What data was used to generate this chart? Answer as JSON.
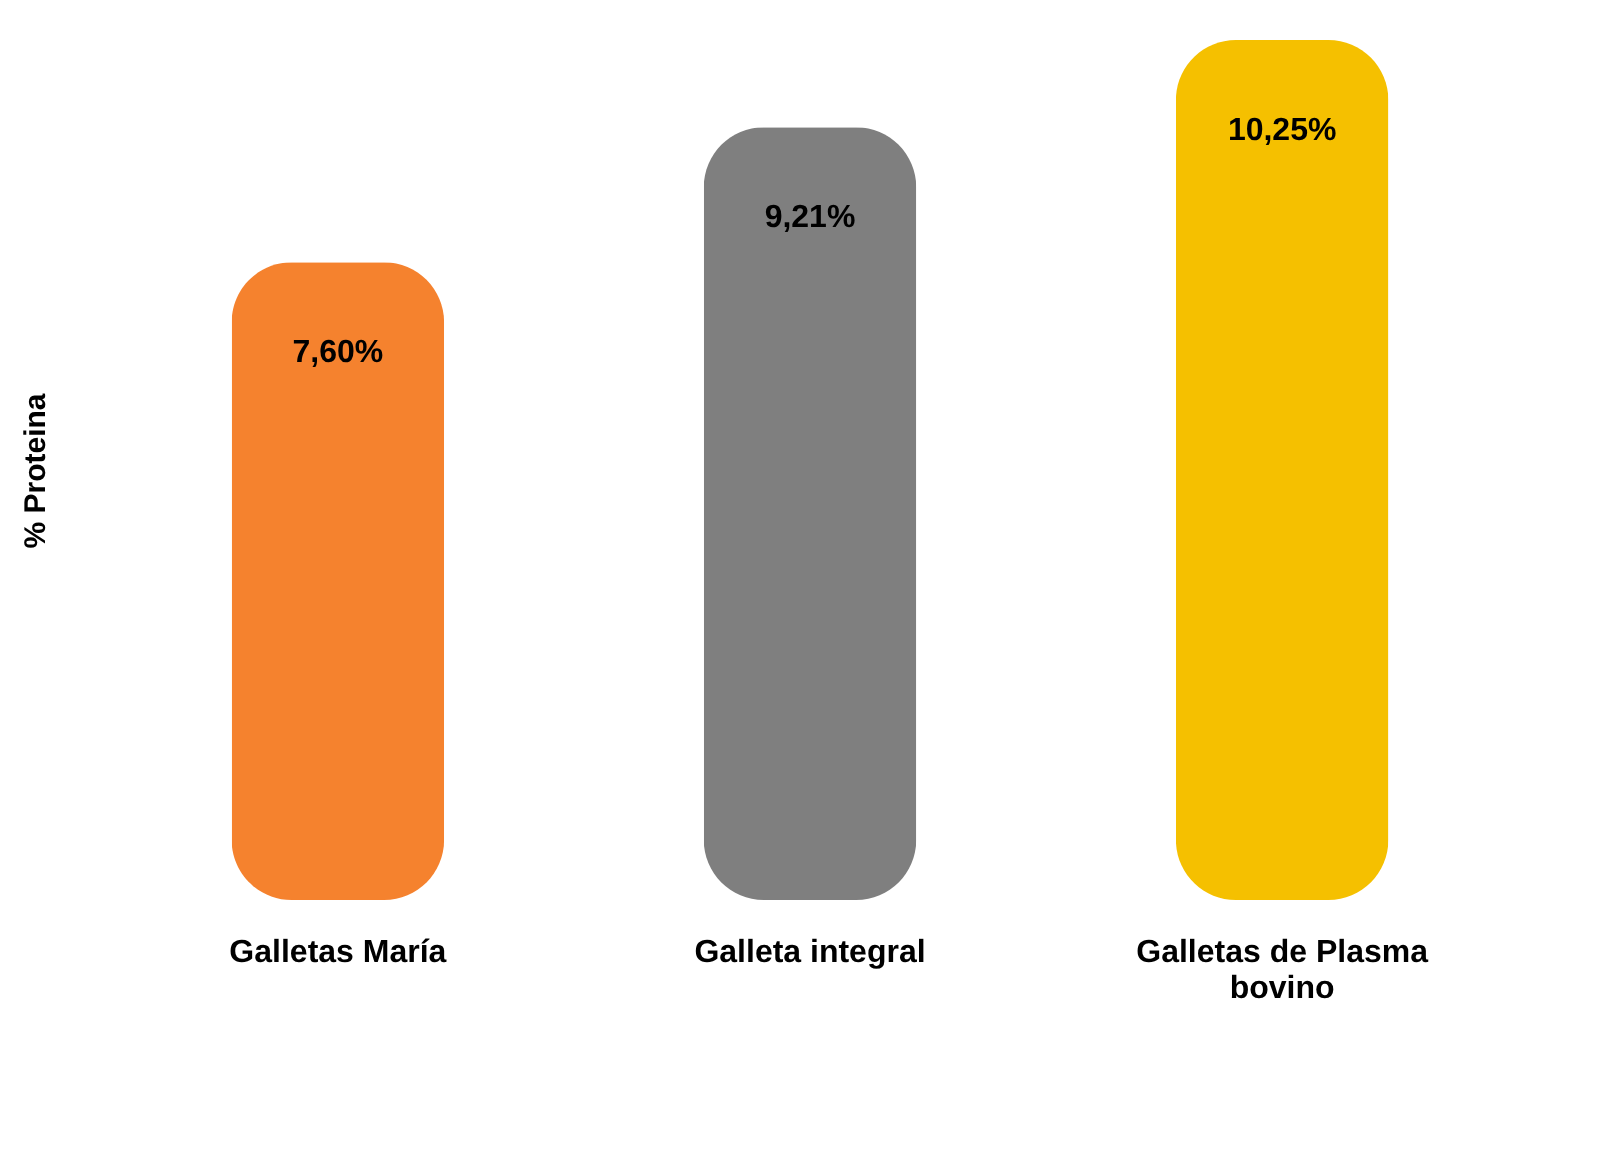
{
  "chart_data": {
    "type": "bar",
    "ylabel": "% Proteina",
    "categories": [
      "Galletas María",
      "Galleta integral",
      "Galletas de Plasma bovino"
    ],
    "values": [
      7.6,
      9.21,
      10.25
    ],
    "colors": [
      "#f5822e",
      "#7f7f7f",
      "#f5c000"
    ],
    "value_labels": [
      "7,60%",
      "9,21%",
      "10,25%"
    ],
    "tick_labels": false,
    "grid": false
  }
}
